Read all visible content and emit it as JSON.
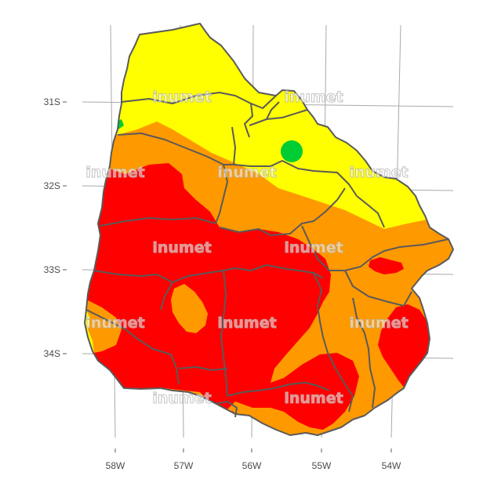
{
  "map": {
    "lat_labels": [
      "31S",
      "32S",
      "33S",
      "34S"
    ],
    "lon_labels": [
      "58W",
      "57W",
      "56W",
      "55W",
      "54W"
    ],
    "watermark": "inumet",
    "colors": {
      "background": "#ffffff",
      "grid": "#a9a9a9",
      "border": "#5a5a5a",
      "yellow": "#ffff00",
      "orange": "#ff9900",
      "red": "#ff0000",
      "green": "#00cc33"
    }
  }
}
